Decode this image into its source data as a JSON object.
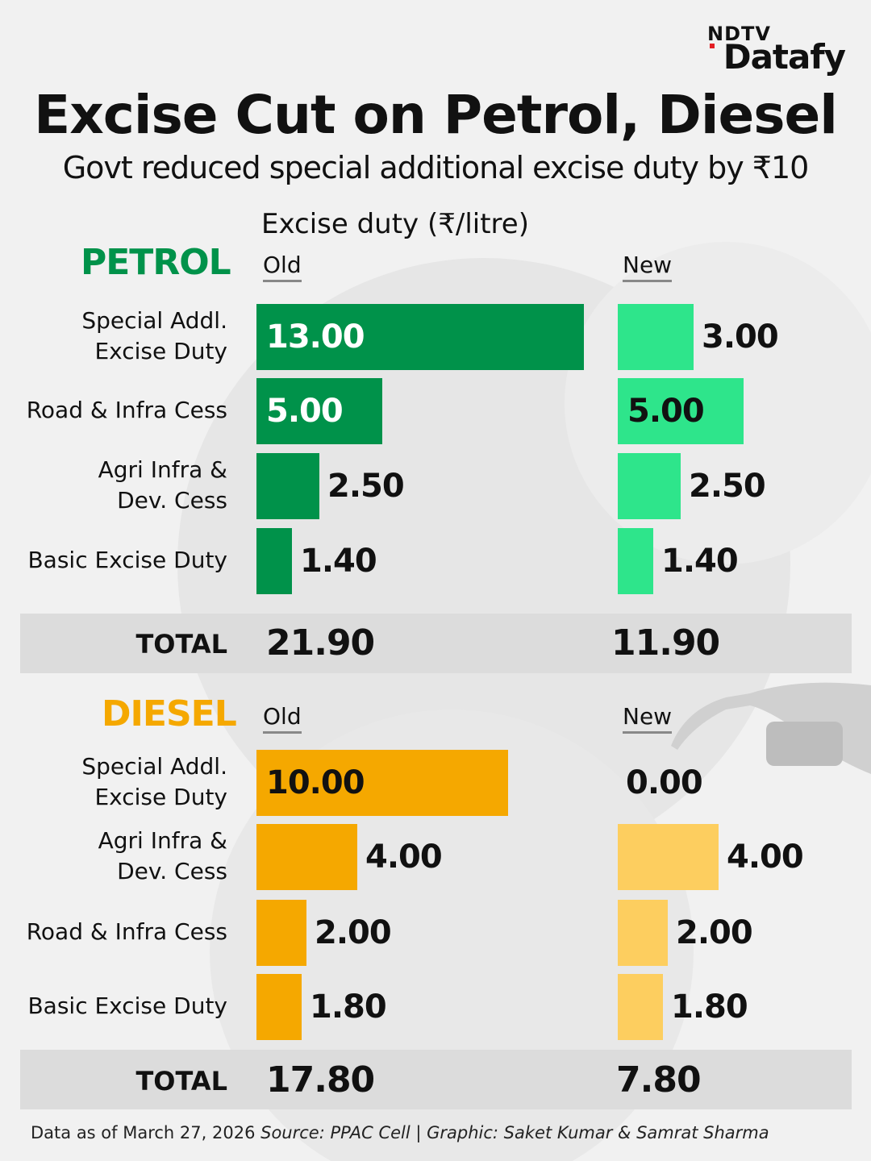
{
  "brand": {
    "top": "NDTV",
    "bottom": "Datafy"
  },
  "title": "Excise Cut on Petrol, Diesel",
  "subtitle": "Govt reduced special additional excise duty by ₹10",
  "axis_title": "Excise duty (₹/litre)",
  "colors": {
    "petrol_old": "#00924a",
    "petrol_new": "#2ee58b",
    "diesel_old": "#f5a800",
    "diesel_new": "#fdce5f"
  },
  "chart_data": [
    {
      "type": "bar",
      "orientation": "horizontal",
      "section": "PETROL",
      "categories": [
        "Special Addl.\nExcise Duty",
        "Road & Infra Cess",
        "Agri Infra &\nDev. Cess",
        "Basic Excise Duty"
      ],
      "series": [
        {
          "name": "Old",
          "values": [
            13.0,
            5.0,
            2.5,
            1.4
          ],
          "labels": [
            "13.00",
            "5.00",
            "2.50",
            "1.40"
          ]
        },
        {
          "name": "New",
          "values": [
            3.0,
            5.0,
            2.5,
            1.4
          ],
          "labels": [
            "3.00",
            "5.00",
            "2.50",
            "1.40"
          ]
        }
      ],
      "total_label": "TOTAL",
      "totals": [
        "21.90",
        "11.90"
      ]
    },
    {
      "type": "bar",
      "orientation": "horizontal",
      "section": "DIESEL",
      "categories": [
        "Special Addl.\nExcise Duty",
        "Agri Infra &\nDev. Cess",
        "Road & Infra Cess",
        "Basic Excise Duty"
      ],
      "series": [
        {
          "name": "Old",
          "values": [
            10.0,
            4.0,
            2.0,
            1.8
          ],
          "labels": [
            "10.00",
            "4.00",
            "2.00",
            "1.80"
          ]
        },
        {
          "name": "New",
          "values": [
            0.0,
            4.0,
            2.0,
            1.8
          ],
          "labels": [
            "0.00",
            "4.00",
            "2.00",
            "1.80"
          ]
        }
      ],
      "total_label": "TOTAL",
      "totals": [
        "17.80",
        "7.80"
      ]
    }
  ],
  "footer": {
    "date": "Data as of March 27, 2026",
    "source": "Source: PPAC Cell",
    "credit": "| Graphic: Saket Kumar & Samrat Sharma"
  }
}
